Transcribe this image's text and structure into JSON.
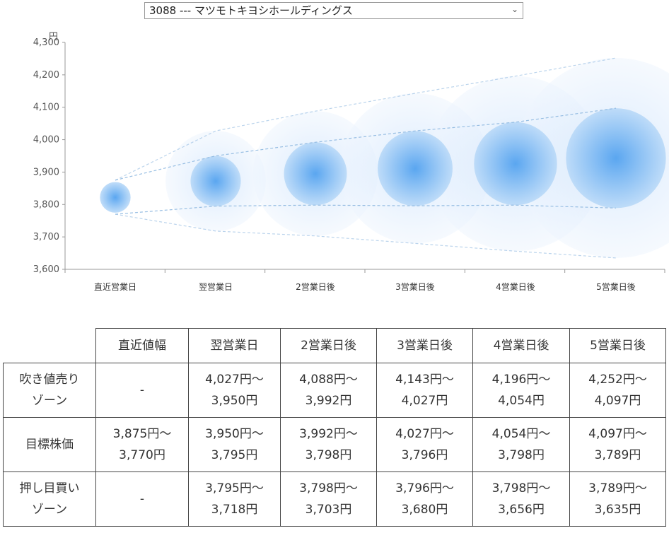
{
  "selector": {
    "value": "3088 --- マツモトキヨシホールディングス",
    "arrow_icon": "chevron-down-icon"
  },
  "chart_data": {
    "type": "bubble-range",
    "unit_label": "円",
    "ylim": [
      3600,
      4300
    ],
    "yticks": [
      "3,600",
      "3,700",
      "3,800",
      "3,900",
      "4,000",
      "4,100",
      "4,200",
      "4,300"
    ],
    "ytick_values": [
      3600,
      3700,
      3800,
      3900,
      4000,
      4100,
      4200,
      4300
    ],
    "categories": [
      "直近営業日",
      "翌営業日",
      "2営業日後",
      "3営業日後",
      "4営業日後",
      "5営業日後"
    ],
    "target_center": [
      3822,
      3872,
      3895,
      3911,
      3926,
      3943
    ],
    "target_upper": [
      3875,
      3950,
      3992,
      4027,
      4054,
      4097
    ],
    "target_lower": [
      3770,
      3795,
      3798,
      3796,
      3798,
      3789
    ],
    "outer_upper": [
      3875,
      4027,
      4088,
      4143,
      4196,
      4252
    ],
    "outer_lower": [
      3770,
      3718,
      3703,
      3680,
      3656,
      3635
    ],
    "colors": {
      "bubble_core": "#6aaef0",
      "bubble_edge": "#e6f1fd",
      "trend": "#8eb8e0",
      "axis": "#999999"
    }
  },
  "table": {
    "headers": [
      "",
      "直近値幅",
      "翌営業日",
      "2営業日後",
      "3営業日後",
      "4営業日後",
      "5営業日後"
    ],
    "rows": [
      {
        "label": [
          "吹き値売り",
          "ゾーン"
        ],
        "cells": [
          [
            "-"
          ],
          [
            "4,027円～",
            "3,950円"
          ],
          [
            "4,088円～",
            "3,992円"
          ],
          [
            "4,143円～",
            "4,027円"
          ],
          [
            "4,196円～",
            "4,054円"
          ],
          [
            "4,252円～",
            "4,097円"
          ]
        ]
      },
      {
        "label": [
          "目標株価"
        ],
        "cells": [
          [
            "3,875円～",
            "3,770円"
          ],
          [
            "3,950円～",
            "3,795円"
          ],
          [
            "3,992円～",
            "3,798円"
          ],
          [
            "4,027円～",
            "3,796円"
          ],
          [
            "4,054円～",
            "3,798円"
          ],
          [
            "4,097円～",
            "3,789円"
          ]
        ]
      },
      {
        "label": [
          "押し目買い",
          "ゾーン"
        ],
        "cells": [
          [
            "-"
          ],
          [
            "3,795円～",
            "3,718円"
          ],
          [
            "3,798円～",
            "3,703円"
          ],
          [
            "3,796円～",
            "3,680円"
          ],
          [
            "3,798円～",
            "3,656円"
          ],
          [
            "3,789円～",
            "3,635円"
          ]
        ]
      }
    ]
  }
}
